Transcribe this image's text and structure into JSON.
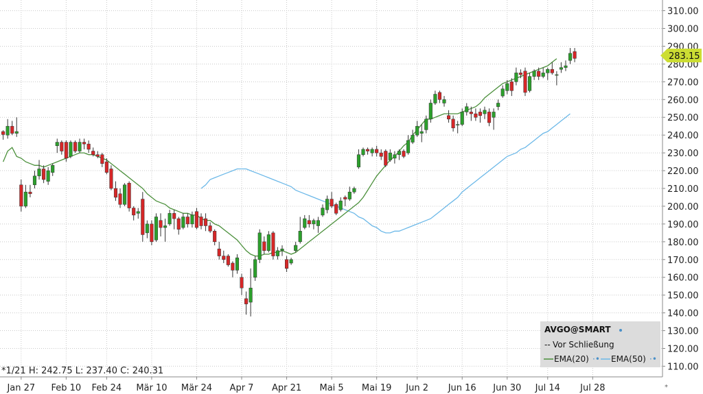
{
  "chart_data": {
    "type": "candlestick",
    "ohlc_info": "*1/21 H: 242.75 L: 237.40 C: 240.31",
    "last_price_label": "283.15",
    "last_price": 283.15,
    "ylim": [
      104,
      316
    ],
    "y_ticks": [
      "310.00",
      "300.00",
      "290.00",
      "280.00",
      "270.00",
      "260.00",
      "250.00",
      "240.00",
      "230.00",
      "220.00",
      "210.00",
      "200.00",
      "190.00",
      "180.00",
      "170.00",
      "160.00",
      "150.00",
      "140.00",
      "130.00",
      "120.00",
      "110.00"
    ],
    "x_ticks": [
      "Jan 27",
      "Feb 10",
      "Feb 24",
      "Mär 10",
      "Mär 24",
      "Apr 7",
      "Apr 21",
      "Mai 5",
      "Mai 19",
      "Jun 2",
      "Jun 16",
      "Jun 30",
      "Jul 14",
      "Jul 28"
    ],
    "grid": true,
    "legend_placement": "bottom-right",
    "legend": {
      "title": "AVGO@SMART",
      "items": [
        "Vor Schließung",
        "EMA(20)",
        "EMA(50)"
      ]
    },
    "colors": {
      "up": "#2ca02c",
      "down": "#d62728",
      "ema20": "#4a8f3a",
      "ema50": "#6bb8e8",
      "grid": "#c8c8c8",
      "price_tag": "#ccdd33"
    },
    "candles": [
      {
        "date": "Jan 21",
        "o": 242,
        "h": 242.75,
        "l": 237.4,
        "c": 240.31
      },
      {
        "date": "Jan 22",
        "o": 240,
        "h": 249,
        "l": 238,
        "c": 245
      },
      {
        "date": "Jan 23",
        "o": 245,
        "h": 248,
        "l": 240,
        "c": 241
      },
      {
        "date": "Jan 24",
        "o": 241,
        "h": 250,
        "l": 239,
        "c": 242
      },
      {
        "date": "Jan 27",
        "o": 212,
        "h": 215,
        "l": 197,
        "c": 200
      },
      {
        "date": "Jan 28",
        "o": 200,
        "h": 212,
        "l": 199,
        "c": 208
      },
      {
        "date": "Jan 29",
        "o": 208,
        "h": 212,
        "l": 205,
        "c": 207
      },
      {
        "date": "Jan 30",
        "o": 212,
        "h": 220,
        "l": 210,
        "c": 217
      },
      {
        "date": "Jan 31",
        "o": 217,
        "h": 226,
        "l": 215,
        "c": 221
      },
      {
        "date": "Feb 3",
        "o": 221,
        "h": 223,
        "l": 213,
        "c": 215
      },
      {
        "date": "Feb 4",
        "o": 214,
        "h": 222,
        "l": 212,
        "c": 220
      },
      {
        "date": "Feb 5",
        "o": 219,
        "h": 224,
        "l": 217,
        "c": 223
      },
      {
        "date": "Feb 6",
        "o": 234,
        "h": 238,
        "l": 230,
        "c": 236
      },
      {
        "date": "Feb 7",
        "o": 236,
        "h": 237,
        "l": 229,
        "c": 231
      },
      {
        "date": "Feb 10",
        "o": 236,
        "h": 237,
        "l": 225,
        "c": 227
      },
      {
        "date": "Feb 11",
        "o": 228,
        "h": 237,
        "l": 227,
        "c": 236
      },
      {
        "date": "Feb 12",
        "o": 236,
        "h": 237,
        "l": 230,
        "c": 231
      },
      {
        "date": "Feb 13",
        "o": 231,
        "h": 238,
        "l": 230,
        "c": 236
      },
      {
        "date": "Feb 14",
        "o": 236,
        "h": 238,
        "l": 232,
        "c": 235
      },
      {
        "date": "Feb 18",
        "o": 235,
        "h": 237,
        "l": 230,
        "c": 232
      },
      {
        "date": "Feb 19",
        "o": 231,
        "h": 233,
        "l": 228,
        "c": 229
      },
      {
        "date": "Feb 20",
        "o": 229,
        "h": 231,
        "l": 227,
        "c": 228
      },
      {
        "date": "Feb 21",
        "o": 229,
        "h": 230,
        "l": 222,
        "c": 224
      },
      {
        "date": "Feb 24",
        "o": 225,
        "h": 227,
        "l": 218,
        "c": 219
      },
      {
        "date": "Feb 25",
        "o": 221,
        "h": 223,
        "l": 209,
        "c": 210
      },
      {
        "date": "Feb 26",
        "o": 210,
        "h": 214,
        "l": 203,
        "c": 205
      },
      {
        "date": "Feb 27",
        "o": 207,
        "h": 210,
        "l": 199,
        "c": 201
      },
      {
        "date": "Feb 28",
        "o": 201,
        "h": 213,
        "l": 200,
        "c": 212
      },
      {
        "date": "Mär 3",
        "o": 213,
        "h": 214,
        "l": 197,
        "c": 199
      },
      {
        "date": "Mär 4",
        "o": 199,
        "h": 200,
        "l": 192,
        "c": 195
      },
      {
        "date": "Mär 5",
        "o": 196,
        "h": 199,
        "l": 193,
        "c": 197
      },
      {
        "date": "Mär 6",
        "o": 204,
        "h": 208,
        "l": 180,
        "c": 184
      },
      {
        "date": "Mär 7",
        "o": 185,
        "h": 192,
        "l": 182,
        "c": 190
      },
      {
        "date": "Mär 10",
        "o": 190,
        "h": 192,
        "l": 178,
        "c": 180
      },
      {
        "date": "Mär 11",
        "o": 181,
        "h": 196,
        "l": 180,
        "c": 194
      },
      {
        "date": "Mär 12",
        "o": 192,
        "h": 196,
        "l": 183,
        "c": 188
      },
      {
        "date": "Mär 13",
        "o": 188,
        "h": 193,
        "l": 180,
        "c": 189
      },
      {
        "date": "Mär 14",
        "o": 190,
        "h": 198,
        "l": 189,
        "c": 196
      },
      {
        "date": "Mär 17",
        "o": 196,
        "h": 198,
        "l": 187,
        "c": 193
      },
      {
        "date": "Mär 18",
        "o": 193,
        "h": 194,
        "l": 184,
        "c": 187
      },
      {
        "date": "Mär 19",
        "o": 188,
        "h": 196,
        "l": 187,
        "c": 194
      },
      {
        "date": "Mär 20",
        "o": 194,
        "h": 196,
        "l": 188,
        "c": 190
      },
      {
        "date": "Mär 21",
        "o": 190,
        "h": 197,
        "l": 188,
        "c": 195
      },
      {
        "date": "Mär 24",
        "o": 197,
        "h": 199,
        "l": 187,
        "c": 188
      },
      {
        "date": "Mär 25",
        "o": 194,
        "h": 196,
        "l": 187,
        "c": 189
      },
      {
        "date": "Mär 26",
        "o": 193,
        "h": 196,
        "l": 186,
        "c": 189
      },
      {
        "date": "Mär 27",
        "o": 189,
        "h": 191,
        "l": 185,
        "c": 186
      },
      {
        "date": "Mär 28",
        "o": 186,
        "h": 187,
        "l": 178,
        "c": 180
      },
      {
        "date": "Mär 31",
        "o": 176,
        "h": 180,
        "l": 170,
        "c": 172
      },
      {
        "date": "Apr 1",
        "o": 172,
        "h": 175,
        "l": 168,
        "c": 170
      },
      {
        "date": "Apr 2",
        "o": 172,
        "h": 173,
        "l": 166,
        "c": 167
      },
      {
        "date": "Apr 3",
        "o": 168,
        "h": 169,
        "l": 160,
        "c": 164
      },
      {
        "date": "Apr 4",
        "o": 164,
        "h": 173,
        "l": 162,
        "c": 171
      },
      {
        "date": "Apr 7",
        "o": 160,
        "h": 162,
        "l": 150,
        "c": 154
      },
      {
        "date": "Apr 8",
        "o": 148,
        "h": 152,
        "l": 139,
        "c": 145
      },
      {
        "date": "Apr 9",
        "o": 146,
        "h": 165,
        "l": 138,
        "c": 154
      },
      {
        "date": "Apr 10",
        "o": 160,
        "h": 172,
        "l": 158,
        "c": 170
      },
      {
        "date": "Apr 11",
        "o": 170,
        "h": 187,
        "l": 168,
        "c": 185
      },
      {
        "date": "Apr 14",
        "o": 180,
        "h": 183,
        "l": 173,
        "c": 175
      },
      {
        "date": "Apr 15",
        "o": 175,
        "h": 186,
        "l": 174,
        "c": 184
      },
      {
        "date": "Apr 16",
        "o": 185,
        "h": 186,
        "l": 170,
        "c": 172
      },
      {
        "date": "Apr 17",
        "o": 172,
        "h": 177,
        "l": 170,
        "c": 175
      },
      {
        "date": "Apr 18",
        "o": 175,
        "h": 178,
        "l": 172,
        "c": 176
      },
      {
        "date": "Apr 21",
        "o": 170,
        "h": 172,
        "l": 163,
        "c": 165
      },
      {
        "date": "Apr 22",
        "o": 168,
        "h": 171,
        "l": 167,
        "c": 170
      },
      {
        "date": "Apr 23",
        "o": 175,
        "h": 180,
        "l": 174,
        "c": 178
      },
      {
        "date": "Apr 24",
        "o": 180,
        "h": 194,
        "l": 179,
        "c": 186
      },
      {
        "date": "Apr 25",
        "o": 188,
        "h": 195,
        "l": 187,
        "c": 193
      },
      {
        "date": "Apr 28",
        "o": 192,
        "h": 195,
        "l": 188,
        "c": 190
      },
      {
        "date": "Apr 29",
        "o": 190,
        "h": 193,
        "l": 187,
        "c": 192
      },
      {
        "date": "Apr 30",
        "o": 189,
        "h": 194,
        "l": 185,
        "c": 192
      },
      {
        "date": "Mai 1",
        "o": 195,
        "h": 201,
        "l": 194,
        "c": 199
      },
      {
        "date": "Mai 2",
        "o": 198,
        "h": 206,
        "l": 196,
        "c": 204
      },
      {
        "date": "Mai 5",
        "o": 204,
        "h": 208,
        "l": 199,
        "c": 200
      },
      {
        "date": "Mai 6",
        "o": 201,
        "h": 202,
        "l": 195,
        "c": 196
      },
      {
        "date": "Mai 7",
        "o": 198,
        "h": 205,
        "l": 197,
        "c": 203
      },
      {
        "date": "Mai 8",
        "o": 205,
        "h": 206,
        "l": 200,
        "c": 204
      },
      {
        "date": "Mai 9",
        "o": 204,
        "h": 211,
        "l": 203,
        "c": 208
      },
      {
        "date": "Mai 12",
        "o": 208,
        "h": 211,
        "l": 207,
        "c": 210
      },
      {
        "date": "Mai 13",
        "o": 222,
        "h": 232,
        "l": 221,
        "c": 229
      },
      {
        "date": "Mai 14",
        "o": 229,
        "h": 233,
        "l": 228,
        "c": 232
      },
      {
        "date": "Mai 15",
        "o": 232,
        "h": 233,
        "l": 229,
        "c": 231
      },
      {
        "date": "Mai 16",
        "o": 230,
        "h": 233,
        "l": 228,
        "c": 232
      },
      {
        "date": "Mai 19",
        "o": 232,
        "h": 234,
        "l": 228,
        "c": 230
      },
      {
        "date": "Mai 20",
        "o": 230,
        "h": 232,
        "l": 226,
        "c": 228
      },
      {
        "date": "Mai 21",
        "o": 231,
        "h": 232,
        "l": 222,
        "c": 223
      },
      {
        "date": "Mai 22",
        "o": 226,
        "h": 232,
        "l": 225,
        "c": 230
      },
      {
        "date": "Mai 23",
        "o": 227,
        "h": 231,
        "l": 224,
        "c": 229
      },
      {
        "date": "Mai 27",
        "o": 229,
        "h": 232,
        "l": 226,
        "c": 231
      },
      {
        "date": "Mai 28",
        "o": 231,
        "h": 232,
        "l": 227,
        "c": 228
      },
      {
        "date": "Mai 29",
        "o": 230,
        "h": 240,
        "l": 229,
        "c": 237
      },
      {
        "date": "Mai 30",
        "o": 236,
        "h": 243,
        "l": 235,
        "c": 240
      },
      {
        "date": "Jun 2",
        "o": 240,
        "h": 248,
        "l": 239,
        "c": 245
      },
      {
        "date": "Jun 3",
        "o": 241,
        "h": 246,
        "l": 236,
        "c": 242
      },
      {
        "date": "Jun 4",
        "o": 243,
        "h": 251,
        "l": 241,
        "c": 249
      },
      {
        "date": "Jun 5",
        "o": 249,
        "h": 260,
        "l": 247,
        "c": 258
      },
      {
        "date": "Jun 6",
        "o": 258,
        "h": 265,
        "l": 257,
        "c": 263
      },
      {
        "date": "Jun 9",
        "o": 264,
        "h": 265,
        "l": 258,
        "c": 260
      },
      {
        "date": "Jun 10",
        "o": 258,
        "h": 262,
        "l": 256,
        "c": 260
      },
      {
        "date": "Jun 11",
        "o": 251,
        "h": 254,
        "l": 247,
        "c": 249
      },
      {
        "date": "Jun 12",
        "o": 249,
        "h": 251,
        "l": 242,
        "c": 244
      },
      {
        "date": "Jun 13",
        "o": 246,
        "h": 248,
        "l": 241,
        "c": 246
      },
      {
        "date": "Jun 16",
        "o": 246,
        "h": 255,
        "l": 245,
        "c": 253
      },
      {
        "date": "Jun 17",
        "o": 253,
        "h": 258,
        "l": 251,
        "c": 256
      },
      {
        "date": "Jun 18",
        "o": 253,
        "h": 256,
        "l": 248,
        "c": 252
      },
      {
        "date": "Jun 19",
        "o": 252,
        "h": 255,
        "l": 248,
        "c": 250
      },
      {
        "date": "Jun 20",
        "o": 253,
        "h": 255,
        "l": 247,
        "c": 251
      },
      {
        "date": "Jun 23",
        "o": 252,
        "h": 256,
        "l": 249,
        "c": 254
      },
      {
        "date": "Jun 24",
        "o": 253,
        "h": 255,
        "l": 245,
        "c": 247
      },
      {
        "date": "Jun 25",
        "o": 250,
        "h": 255,
        "l": 243,
        "c": 253
      },
      {
        "date": "Jun 26",
        "o": 256,
        "h": 260,
        "l": 254,
        "c": 258
      },
      {
        "date": "Jun 27",
        "o": 262,
        "h": 268,
        "l": 261,
        "c": 266
      },
      {
        "date": "Jun 30",
        "o": 265,
        "h": 271,
        "l": 263,
        "c": 269
      },
      {
        "date": "Jul 1",
        "o": 270,
        "h": 272,
        "l": 262,
        "c": 265
      },
      {
        "date": "Jul 2",
        "o": 270,
        "h": 278,
        "l": 268,
        "c": 275
      },
      {
        "date": "Jul 3",
        "o": 275,
        "h": 277,
        "l": 272,
        "c": 274
      },
      {
        "date": "Jul 7",
        "o": 276,
        "h": 278,
        "l": 262,
        "c": 264
      },
      {
        "date": "Jul 8",
        "o": 265,
        "h": 275,
        "l": 264,
        "c": 273
      },
      {
        "date": "Jul 9",
        "o": 273,
        "h": 277,
        "l": 271,
        "c": 276
      },
      {
        "date": "Jul 10",
        "o": 276,
        "h": 278,
        "l": 271,
        "c": 273
      },
      {
        "date": "Jul 11",
        "o": 273,
        "h": 278,
        "l": 272,
        "c": 275
      },
      {
        "date": "Jul 14",
        "o": 275,
        "h": 278,
        "l": 271,
        "c": 277
      },
      {
        "date": "Jul 15",
        "o": 277,
        "h": 281,
        "l": 274,
        "c": 275
      },
      {
        "date": "Jul 16",
        "o": 274,
        "h": 276,
        "l": 268,
        "c": 274
      },
      {
        "date": "Jul 17",
        "o": 277,
        "h": 281,
        "l": 275,
        "c": 278
      },
      {
        "date": "Jul 18",
        "o": 278,
        "h": 282,
        "l": 276,
        "c": 279
      },
      {
        "date": "Jul 21",
        "o": 282,
        "h": 289,
        "l": 280,
        "c": 286
      },
      {
        "date": "Jul 22",
        "o": 287,
        "h": 289,
        "l": 281,
        "c": 283.15
      }
    ],
    "series": [
      {
        "name": "EMA(20)",
        "values": [
          225,
          231,
          233,
          228,
          227,
          225,
          224,
          223,
          223,
          222,
          223,
          224,
          225,
          226,
          227,
          228,
          229,
          230,
          230,
          229,
          229,
          228,
          227,
          226,
          224,
          222,
          220,
          218,
          216,
          214,
          212,
          210,
          207,
          205,
          203,
          202,
          201,
          199,
          198,
          197,
          196,
          196,
          195,
          195,
          193,
          192,
          192,
          190,
          189,
          187,
          185,
          183,
          181,
          178,
          175,
          173,
          172,
          172,
          173,
          173,
          174,
          174,
          175,
          174,
          173,
          174,
          176,
          178,
          180,
          182,
          184,
          186,
          188,
          190,
          192,
          194,
          196,
          198,
          200,
          202,
          205,
          209,
          213,
          217,
          220,
          223,
          226,
          228,
          231,
          234,
          236,
          240,
          243,
          246,
          249,
          249,
          250,
          251,
          252,
          252,
          252,
          252,
          253,
          254,
          255,
          256,
          258,
          261,
          263,
          265,
          267,
          269,
          270,
          271,
          272,
          273,
          274,
          275,
          276,
          277,
          278,
          279,
          281,
          283
        ]
      },
      {
        "name": "EMA(50)",
        "values": [
          210,
          212,
          215,
          216,
          217,
          218,
          219,
          220,
          221,
          221,
          221,
          220,
          219,
          218,
          217,
          216,
          215,
          214,
          213,
          212,
          211,
          209,
          208,
          207,
          206,
          205,
          204,
          203,
          202,
          201,
          200,
          199,
          198,
          197,
          196,
          194,
          193,
          191,
          189,
          188,
          186,
          185,
          185,
          186,
          186,
          187,
          188,
          189,
          190,
          191,
          192,
          193,
          195,
          197,
          199,
          201,
          203,
          205,
          208,
          210,
          212,
          214,
          216,
          218,
          220,
          222,
          224,
          226,
          228,
          229,
          230,
          232,
          233,
          235,
          237,
          239,
          241,
          242,
          244,
          246,
          248,
          250,
          252
        ]
      }
    ],
    "ema50_start_index": 44
  }
}
